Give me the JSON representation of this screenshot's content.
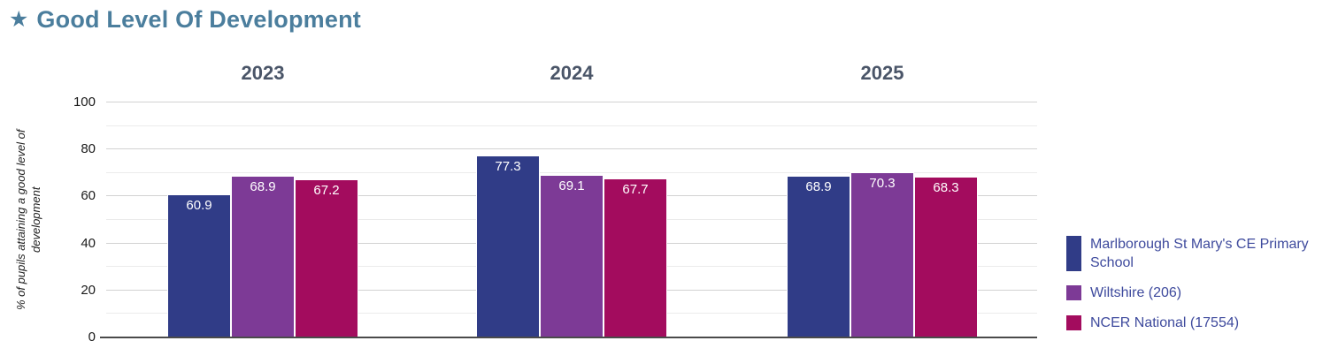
{
  "page_title": "Good Level Of Development",
  "title_icon": "star",
  "colors": {
    "title": "#4b7e9d",
    "category_label": "#4a5568",
    "legend_text": "#3e4a9d",
    "axis_line": "#4a4a4a",
    "gridline_major": "#d2d2d2",
    "gridline_minor": "#ebebeb",
    "bar_label": "#ffffff"
  },
  "chart_data": {
    "type": "bar",
    "title": "Good Level Of Development",
    "categories": [
      "2023",
      "2024",
      "2025"
    ],
    "series": [
      {
        "name": "Marlborough St Mary's CE Primary School",
        "color": "#303c87",
        "values": [
          60.9,
          77.3,
          68.9
        ]
      },
      {
        "name": "Wiltshire (206)",
        "color": "#7d3a96",
        "values": [
          68.9,
          69.1,
          70.3
        ]
      },
      {
        "name": "NCER National (17554)",
        "color": "#a30c5e",
        "values": [
          67.2,
          67.7,
          68.3
        ]
      }
    ],
    "ylabel": "% of pupils attaining a good level of development",
    "ylim": [
      0,
      100
    ],
    "yticks": [
      0,
      20,
      40,
      60,
      80,
      100
    ],
    "gridline_step": 10,
    "grid": "on",
    "legend_position": "right",
    "value_labels": "inside-top"
  }
}
